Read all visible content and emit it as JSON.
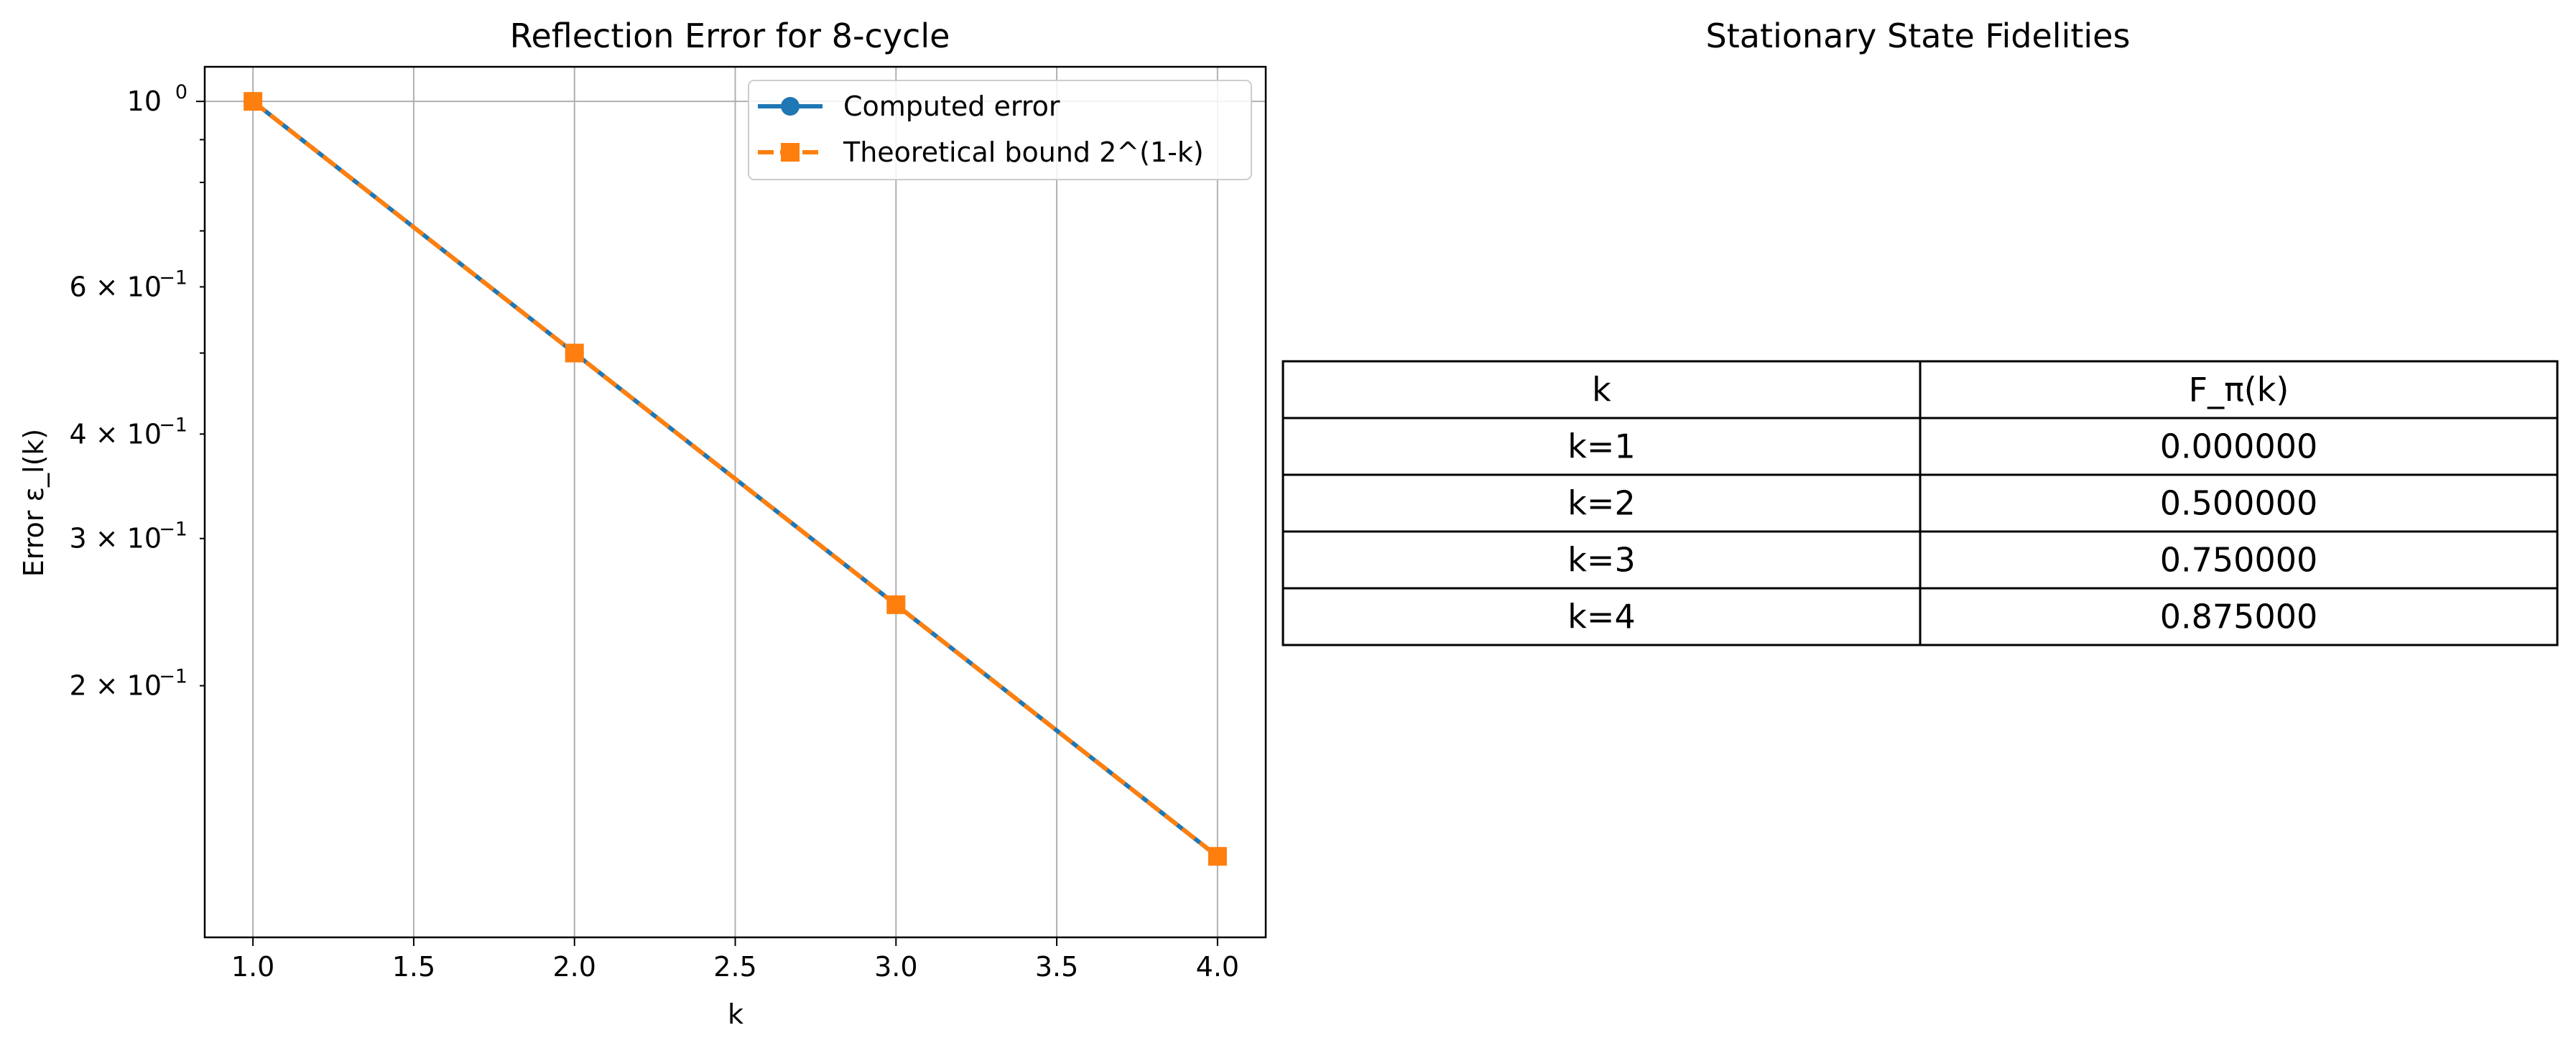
{
  "chart_data": [
    {
      "type": "line",
      "title": "Reflection Error for 8-cycle",
      "xlabel": "k",
      "ylabel": "Error ε_l(k)",
      "yscale": "log",
      "xlim": [
        0.85,
        4.15
      ],
      "ylim": [
        0.1,
        1.1
      ],
      "grid": true,
      "x": [
        1,
        2,
        3,
        4
      ],
      "x_ticks": [
        "1.0",
        "1.5",
        "2.0",
        "2.5",
        "3.0",
        "3.5",
        "4.0"
      ],
      "y_ticks": [
        {
          "value": 1.0,
          "mant": "10",
          "exp": "0"
        },
        {
          "value": 0.6,
          "mant": "6 × 10",
          "exp": "−1"
        },
        {
          "value": 0.4,
          "mant": "4 × 10",
          "exp": "−1"
        },
        {
          "value": 0.3,
          "mant": "3 × 10",
          "exp": "−1"
        },
        {
          "value": 0.2,
          "mant": "2 × 10",
          "exp": "−1"
        }
      ],
      "legend_position": "upper-right",
      "series": [
        {
          "name": "Computed error",
          "values": [
            1.0,
            0.5,
            0.25,
            0.125
          ],
          "color": "#1f77b4",
          "marker": "circle",
          "linestyle": "solid"
        },
        {
          "name": "Theoretical bound 2^(1-k)",
          "values": [
            1.0,
            0.5,
            0.25,
            0.125
          ],
          "color": "#ff7f0e",
          "marker": "square",
          "linestyle": "dashed"
        }
      ]
    },
    {
      "type": "table",
      "title": "Stationary State Fidelities",
      "columns": [
        "k",
        "F_π(k)"
      ],
      "rows": [
        [
          "k=1",
          "0.000000"
        ],
        [
          "k=2",
          "0.500000"
        ],
        [
          "k=3",
          "0.750000"
        ],
        [
          "k=4",
          "0.875000"
        ]
      ]
    }
  ]
}
